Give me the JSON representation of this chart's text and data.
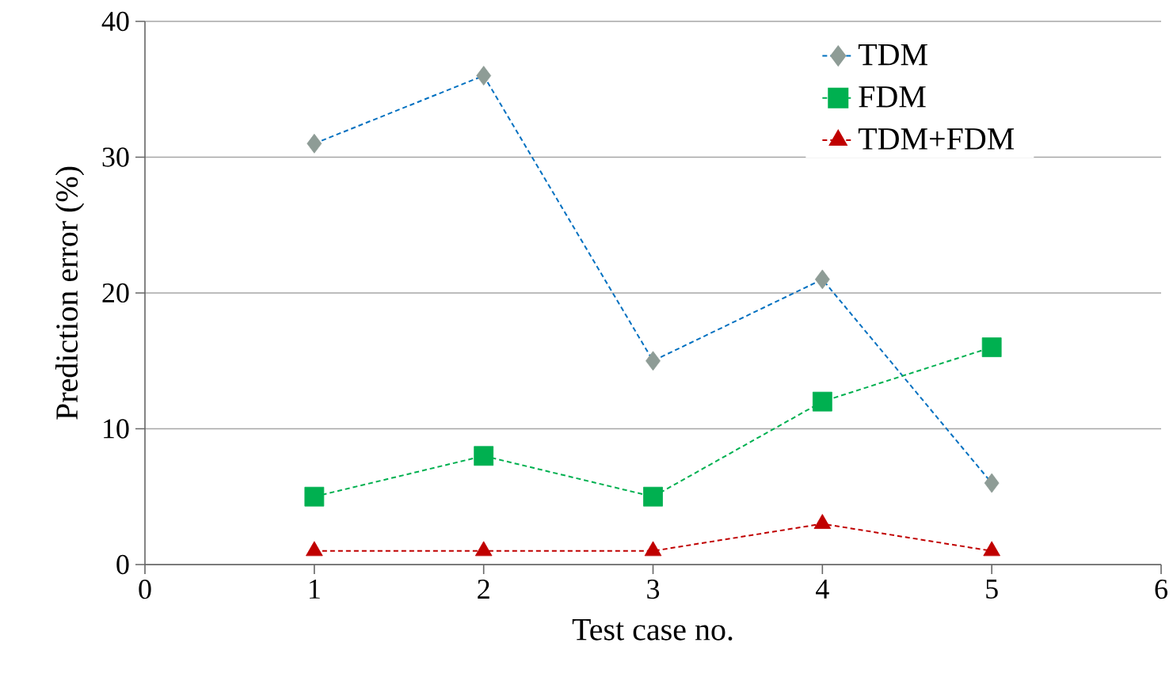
{
  "chart_data": {
    "type": "line",
    "xlabel": "Test case no.",
    "ylabel": "Prediction error (%)",
    "x": [
      1,
      2,
      3,
      4,
      5
    ],
    "series": [
      {
        "name": "TDM",
        "color": "#0070c0",
        "colors": [
          "#8e9c96",
          "#8e9c96",
          "#8e9c96",
          "#8e9c96",
          "#8e9c96"
        ],
        "marker": "diamond",
        "values": [
          31,
          36,
          15,
          21,
          6
        ]
      },
      {
        "name": "FDM",
        "color": "#00b050",
        "colors": [
          "#00b050",
          "#00b050",
          "#00b050",
          "#00b050",
          "#00b050"
        ],
        "marker": "square",
        "values": [
          5,
          8,
          5,
          12,
          16
        ]
      },
      {
        "name": "TDM+FDM",
        "color": "#c00000",
        "colors": [
          "#c00000",
          "#c00000",
          "#c00000",
          "#c00000",
          "#c00000"
        ],
        "marker": "triangle",
        "values": [
          1,
          1,
          1,
          3,
          1
        ]
      }
    ],
    "xlim": [
      0,
      6
    ],
    "xticks": [
      0,
      1,
      2,
      3,
      4,
      5,
      6
    ],
    "ylim": [
      0,
      40
    ],
    "yticks": [
      0,
      10,
      20,
      30,
      40
    ],
    "grid": "y",
    "legend": "top right",
    "line_style": "dashed"
  }
}
